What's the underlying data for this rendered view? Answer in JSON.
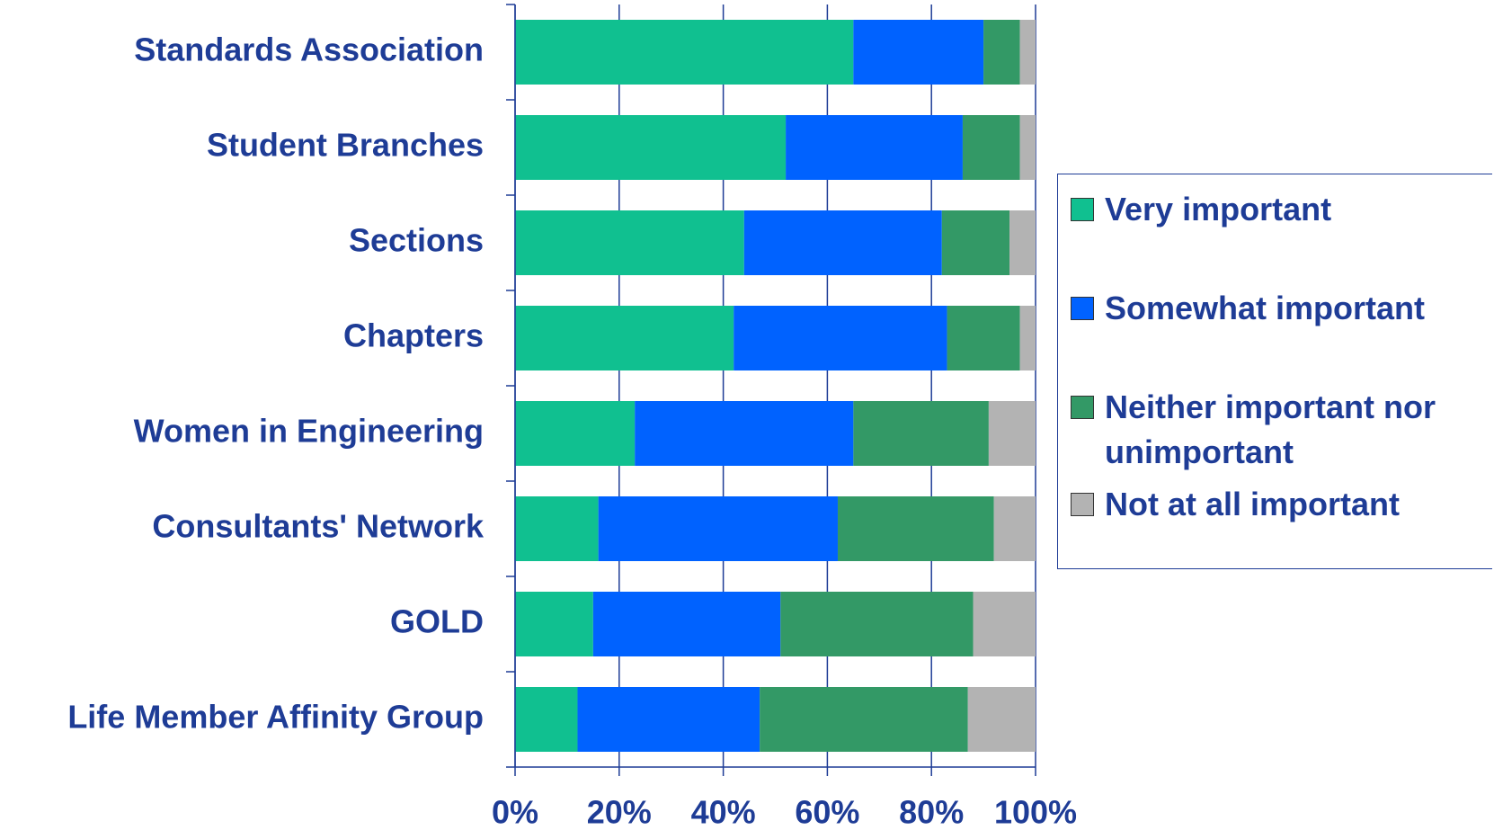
{
  "chart_data": {
    "type": "stacked_barh",
    "categories": [
      "Standards Association",
      "Student Branches",
      "Sections",
      "Chapters",
      "Women in Engineering",
      "Consultants' Network",
      "GOLD",
      "Life Member Affinity Group"
    ],
    "series": [
      {
        "name": "Very important",
        "color": "#10c090",
        "values": [
          65,
          52,
          44,
          42,
          23,
          16,
          15,
          12
        ]
      },
      {
        "name": "Somewhat important",
        "color": "#0062ff",
        "values": [
          25,
          34,
          38,
          41,
          42,
          46,
          36,
          35
        ]
      },
      {
        "name": "Neither important nor unimportant",
        "color": "#339966",
        "values": [
          7,
          11,
          13,
          14,
          26,
          30,
          37,
          40
        ]
      },
      {
        "name": "Not at all important",
        "color": "#b3b3b3",
        "values": [
          3,
          3,
          5,
          3,
          9,
          8,
          12,
          13
        ]
      }
    ],
    "xlim": [
      0,
      100
    ],
    "xticks": [
      {
        "value": 0,
        "label": "0%"
      },
      {
        "value": 20,
        "label": "20%"
      },
      {
        "value": 40,
        "label": "40%"
      },
      {
        "value": 60,
        "label": "60%"
      },
      {
        "value": 80,
        "label": "80%"
      },
      {
        "value": 100,
        "label": "100%"
      }
    ],
    "grid": true
  }
}
